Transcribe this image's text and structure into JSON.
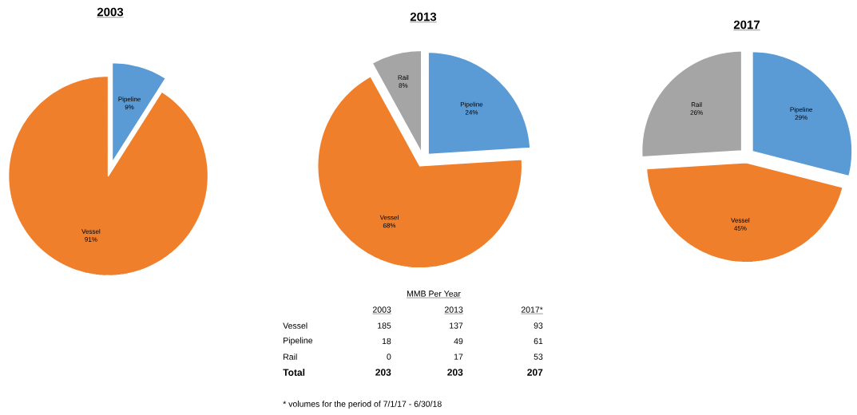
{
  "chart_data": [
    {
      "type": "pie",
      "title": "2003",
      "categories": [
        "Pipeline",
        "Vessel"
      ],
      "values": [
        9,
        91
      ],
      "colors": [
        "#5b9bd5",
        "#f07f2c"
      ],
      "value_labels": [
        "9%",
        "91%"
      ]
    },
    {
      "type": "pie",
      "title": "2013",
      "categories": [
        "Pipeline",
        "Vessel",
        "Rail"
      ],
      "values": [
        24,
        68,
        8
      ],
      "colors": [
        "#5b9bd5",
        "#f07f2c",
        "#a5a5a5"
      ],
      "value_labels": [
        "24%",
        "68%",
        "8%"
      ],
      "annotations": [
        "MMB Per Year",
        "2003",
        "2013",
        "2017*",
        "Vessel",
        "185",
        "137",
        "93",
        "Pipeline",
        "18",
        "49",
        "61",
        "Rail",
        "0",
        "17",
        "53",
        "Total",
        "203",
        "203",
        "207",
        "* volumes for the period of 7/1/17 - 6/30/18"
      ]
    },
    {
      "type": "pie",
      "title": "2017",
      "categories": [
        "Pipeline",
        "Vessel",
        "Rail"
      ],
      "values": [
        29,
        45,
        26
      ],
      "colors": [
        "#5b9bd5",
        "#f07f2c",
        "#a5a5a5"
      ],
      "value_labels": [
        "29%",
        "45%",
        "26%"
      ]
    }
  ]
}
